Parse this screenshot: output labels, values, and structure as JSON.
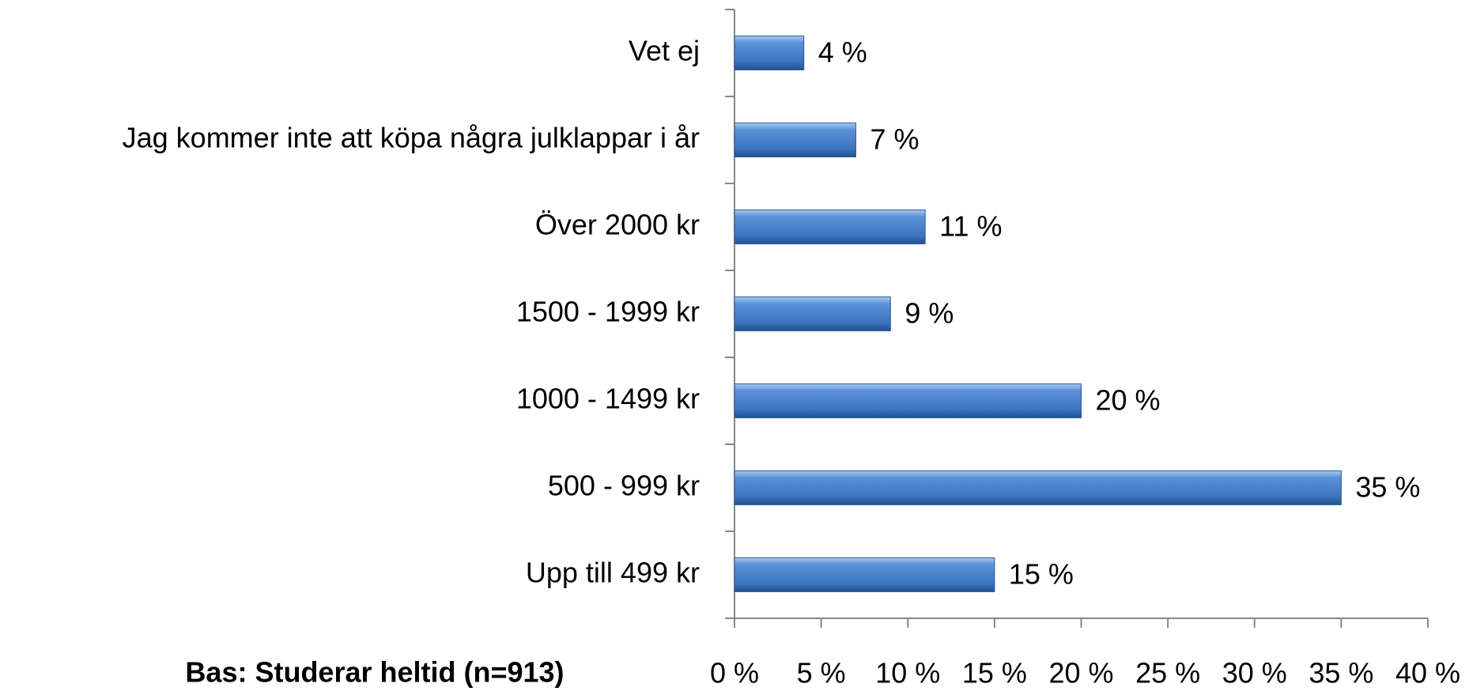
{
  "chart_data": {
    "type": "bar",
    "orientation": "horizontal",
    "categories": [
      "Vet ej",
      "Jag kommer inte att köpa några julklappar i år",
      "Över 2000 kr",
      "1500 - 1999 kr",
      "1000 - 1499 kr",
      "500 - 999 kr",
      "Upp till 499 kr"
    ],
    "values": [
      4,
      7,
      11,
      9,
      20,
      35,
      15
    ],
    "value_labels": [
      "4 %",
      "7 %",
      "11 %",
      "9 %",
      "20 %",
      "35 %",
      "15 %"
    ],
    "color": "#3f7ac6",
    "xlim": [
      0,
      40
    ],
    "xticks": [
      {
        "value": 0,
        "label": "0 %"
      },
      {
        "value": 5,
        "label": "5 %"
      },
      {
        "value": 10,
        "label": "10 %"
      },
      {
        "value": 15,
        "label": "15 %"
      },
      {
        "value": 20,
        "label": "20 %"
      },
      {
        "value": 25,
        "label": "25 %"
      },
      {
        "value": 30,
        "label": "30 %"
      },
      {
        "value": 35,
        "label": "35 %"
      },
      {
        "value": 40,
        "label": "40 %"
      }
    ],
    "annotation": "Bas: Studerar heltid (n=913)"
  }
}
